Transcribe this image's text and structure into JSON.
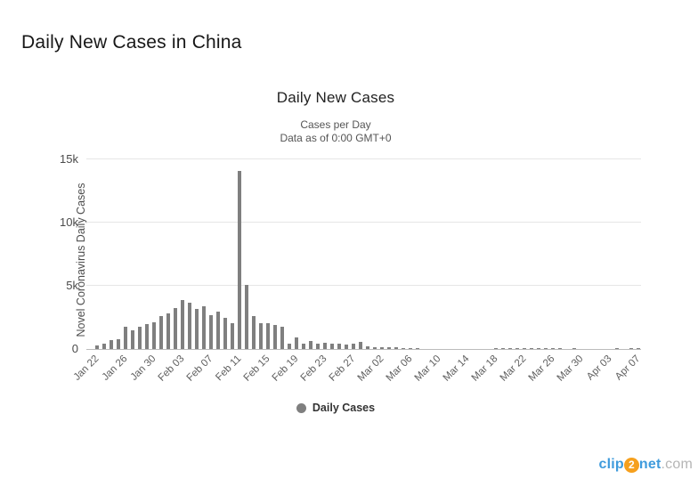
{
  "page": {
    "heading": "Daily New Cases in China"
  },
  "watermark": {
    "part1": "clip",
    "part2": "2",
    "part3": "net",
    "part4": ".com"
  },
  "colors": {
    "bar": "#7f7f7f",
    "grid": "#e6e6e6",
    "axis": "#bcbcbc",
    "legend_marker": "#7f7f7f",
    "watermark_blue": "#3f9bdc",
    "watermark_orange": "#f6a01d",
    "watermark_gray": "#b5b5b5"
  },
  "chart_data": {
    "type": "bar",
    "title": "Daily New Cases",
    "subtitle": [
      "Cases per Day",
      "Data as of 0:00 GMT+0"
    ],
    "ylabel": "Novel Coronavirus Daily Cases",
    "xlabel": "",
    "legend": "Daily Cases",
    "legend_position": "bottom",
    "grid": true,
    "ylim": [
      0,
      15000
    ],
    "ytick_values": [
      0,
      5000,
      10000,
      15000
    ],
    "ytick_labels": [
      "0",
      "5k",
      "10k",
      "15k"
    ],
    "xtick_labels": [
      "Jan 22",
      "Jan 26",
      "Jan 30",
      "Feb 03",
      "Feb 07",
      "Feb 11",
      "Feb 15",
      "Feb 19",
      "Feb 23",
      "Feb 27",
      "Mar 02",
      "Mar 06",
      "Mar 10",
      "Mar 14",
      "Mar 18",
      "Mar 22",
      "Mar 26",
      "Mar 30",
      "Apr 03",
      "Apr 07"
    ],
    "xtick_every": 4,
    "categories": [
      "Jan 22",
      "Jan 23",
      "Jan 24",
      "Jan 25",
      "Jan 26",
      "Jan 27",
      "Jan 28",
      "Jan 29",
      "Jan 30",
      "Jan 31",
      "Feb 01",
      "Feb 02",
      "Feb 03",
      "Feb 04",
      "Feb 05",
      "Feb 06",
      "Feb 07",
      "Feb 08",
      "Feb 09",
      "Feb 10",
      "Feb 11",
      "Feb 12",
      "Feb 13",
      "Feb 14",
      "Feb 15",
      "Feb 16",
      "Feb 17",
      "Feb 18",
      "Feb 19",
      "Feb 20",
      "Feb 21",
      "Feb 22",
      "Feb 23",
      "Feb 24",
      "Feb 25",
      "Feb 26",
      "Feb 27",
      "Feb 28",
      "Feb 29",
      "Mar 01",
      "Mar 02",
      "Mar 03",
      "Mar 04",
      "Mar 05",
      "Mar 06",
      "Mar 07",
      "Mar 08",
      "Mar 09",
      "Mar 10",
      "Mar 11",
      "Mar 12",
      "Mar 13",
      "Mar 14",
      "Mar 15",
      "Mar 16",
      "Mar 17",
      "Mar 18",
      "Mar 19",
      "Mar 20",
      "Mar 21",
      "Mar 22",
      "Mar 23",
      "Mar 24",
      "Mar 25",
      "Mar 26",
      "Mar 27",
      "Mar 28",
      "Mar 29",
      "Mar 30",
      "Mar 31",
      "Apr 01",
      "Apr 02",
      "Apr 03",
      "Apr 04",
      "Apr 05",
      "Apr 06",
      "Apr 07",
      "Apr 08"
    ],
    "values": [
      0,
      259,
      457,
      688,
      769,
      1771,
      1459,
      1737,
      1981,
      2099,
      2589,
      2825,
      3235,
      3887,
      3694,
      3143,
      3385,
      2652,
      2973,
      2467,
      2015,
      14108,
      5090,
      2641,
      2009,
      2048,
      1888,
      1749,
      394,
      889,
      397,
      648,
      409,
      508,
      406,
      433,
      327,
      427,
      573,
      202,
      125,
      119,
      139,
      143,
      99,
      44,
      40,
      19,
      24,
      15,
      8,
      11,
      20,
      16,
      21,
      13,
      34,
      39,
      41,
      46,
      39,
      78,
      47,
      67,
      55,
      54,
      45,
      31,
      48,
      36,
      35,
      31,
      19,
      30,
      39,
      32,
      62,
      63
    ],
    "series_name": "Daily Cases"
  }
}
